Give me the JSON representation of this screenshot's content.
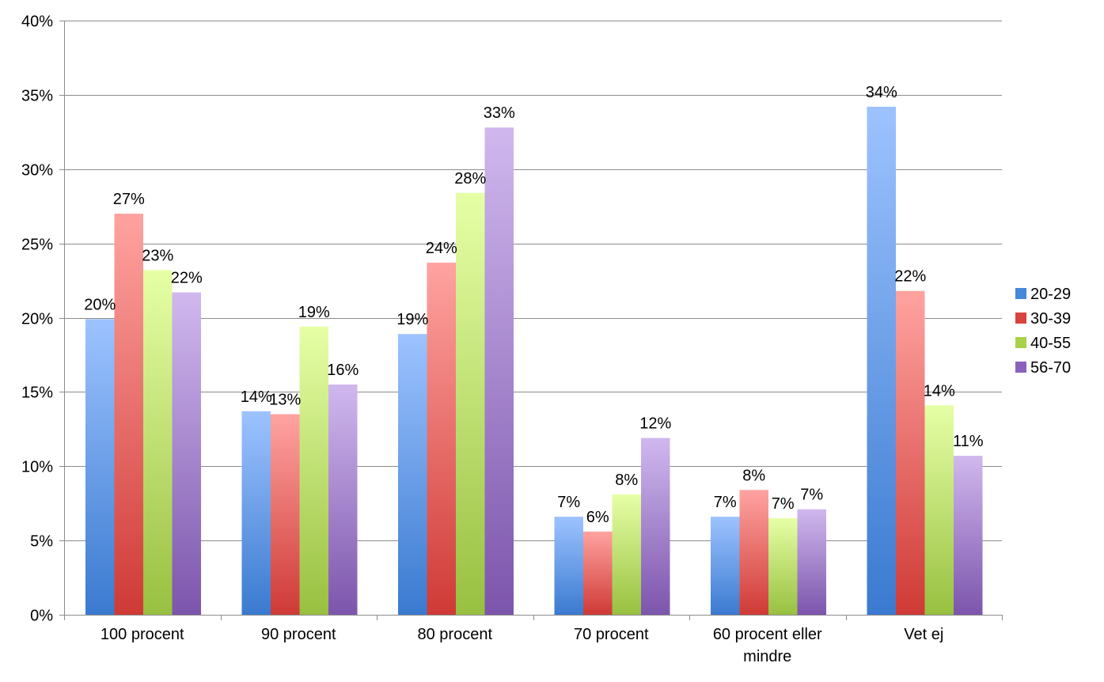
{
  "chart_data": {
    "type": "bar",
    "title": "",
    "xlabel": "",
    "ylabel": "",
    "ylim": [
      0,
      40
    ],
    "y_ticks": [
      "0%",
      "5%",
      "10%",
      "15%",
      "20%",
      "25%",
      "30%",
      "35%",
      "40%"
    ],
    "y_tick_values": [
      0,
      5,
      10,
      15,
      20,
      25,
      30,
      35,
      40
    ],
    "grid": true,
    "legend_position": "right",
    "categories": [
      [
        "100 procent"
      ],
      [
        "90 procent"
      ],
      [
        "80 procent"
      ],
      [
        "70 procent"
      ],
      [
        "60 procent eller",
        "mindre"
      ],
      [
        "Vet ej"
      ]
    ],
    "series": [
      {
        "name": "20-29",
        "color_top": "#9dc3ff",
        "color_bottom": "#3a7ad0",
        "legend_color": "#4a86d8",
        "values": [
          19.9,
          13.7,
          18.9,
          6.6,
          6.6,
          34.2
        ],
        "labels": [
          "20%",
          "14%",
          "19%",
          "7%",
          "7%",
          "34%"
        ]
      },
      {
        "name": "30-39",
        "color_top": "#ffa3a0",
        "color_bottom": "#cf3a36",
        "legend_color": "#d8433e",
        "values": [
          27.0,
          13.5,
          23.7,
          5.6,
          8.4,
          21.8
        ],
        "labels": [
          "27%",
          "13%",
          "24%",
          "6%",
          "8%",
          "22%"
        ]
      },
      {
        "name": "40-55",
        "color_top": "#e6ffa6",
        "color_bottom": "#98c040",
        "legend_color": "#a8d24a",
        "values": [
          23.2,
          19.4,
          28.4,
          8.1,
          6.5,
          14.1
        ],
        "labels": [
          "23%",
          "19%",
          "28%",
          "8%",
          "7%",
          "14%"
        ]
      },
      {
        "name": "56-70",
        "color_top": "#d0b8ee",
        "color_bottom": "#7c55ac",
        "legend_color": "#8a62bc",
        "values": [
          21.7,
          15.5,
          32.8,
          11.9,
          7.1,
          10.7
        ],
        "labels": [
          "22%",
          "16%",
          "33%",
          "12%",
          "7%",
          "11%"
        ]
      }
    ]
  }
}
